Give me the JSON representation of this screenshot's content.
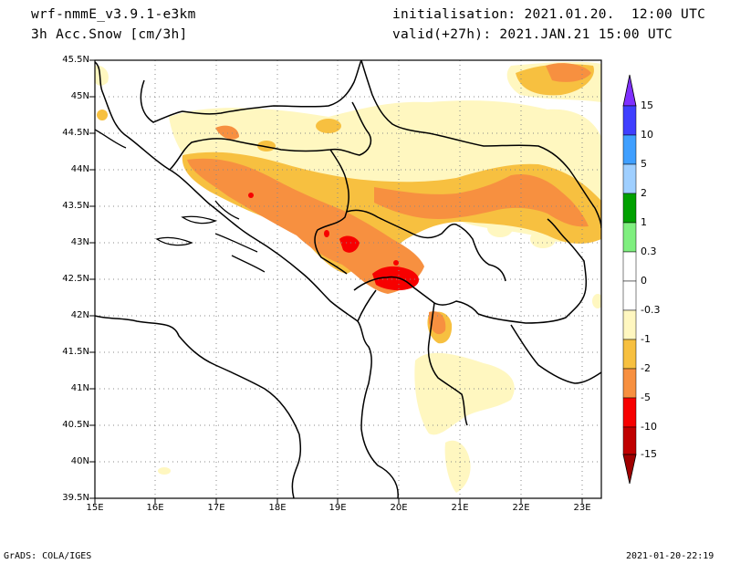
{
  "header": {
    "model": "wrf-nmmE_v3.9.1-e3km",
    "field": "3h Acc.Snow [cm/3h]",
    "initialisation": "initialisation: 2021.01.20.  12:00 UTC",
    "valid": "valid(+27h): 2021.JAN.21 15:00 UTC"
  },
  "footer": {
    "credit": "GrADS: COLA/IGES",
    "timestamp": "2021-01-20-22:19"
  },
  "axes": {
    "lat_labels": [
      "45.5N",
      "45N",
      "44.5N",
      "44N",
      "43.5N",
      "43N",
      "42.5N",
      "42N",
      "41.5N",
      "41N",
      "40.5N",
      "40N",
      "39.5N"
    ],
    "lon_labels": [
      "15E",
      "16E",
      "17E",
      "18E",
      "19E",
      "20E",
      "21E",
      "22E",
      "23E"
    ]
  },
  "colorbar": {
    "labels": [
      "15",
      "10",
      "5",
      "2",
      "1",
      "0.3",
      "0",
      "-0.3",
      "-1",
      "-2",
      "-5",
      "-10",
      "-15"
    ],
    "colors": [
      "#7f2fff",
      "#3f3fff",
      "#3f9fff",
      "#9fcfff",
      "#00a000",
      "#7fef7f",
      "#ffffff",
      "#fff7c0",
      "#f7c040",
      "#f79040",
      "#f70000",
      "#c00000",
      "#9f0000"
    ]
  },
  "snow_colors": {
    "light": "#fff7c0",
    "moderate": "#f7c040",
    "heavy": "#f79040",
    "very_heavy": "#f70000"
  }
}
